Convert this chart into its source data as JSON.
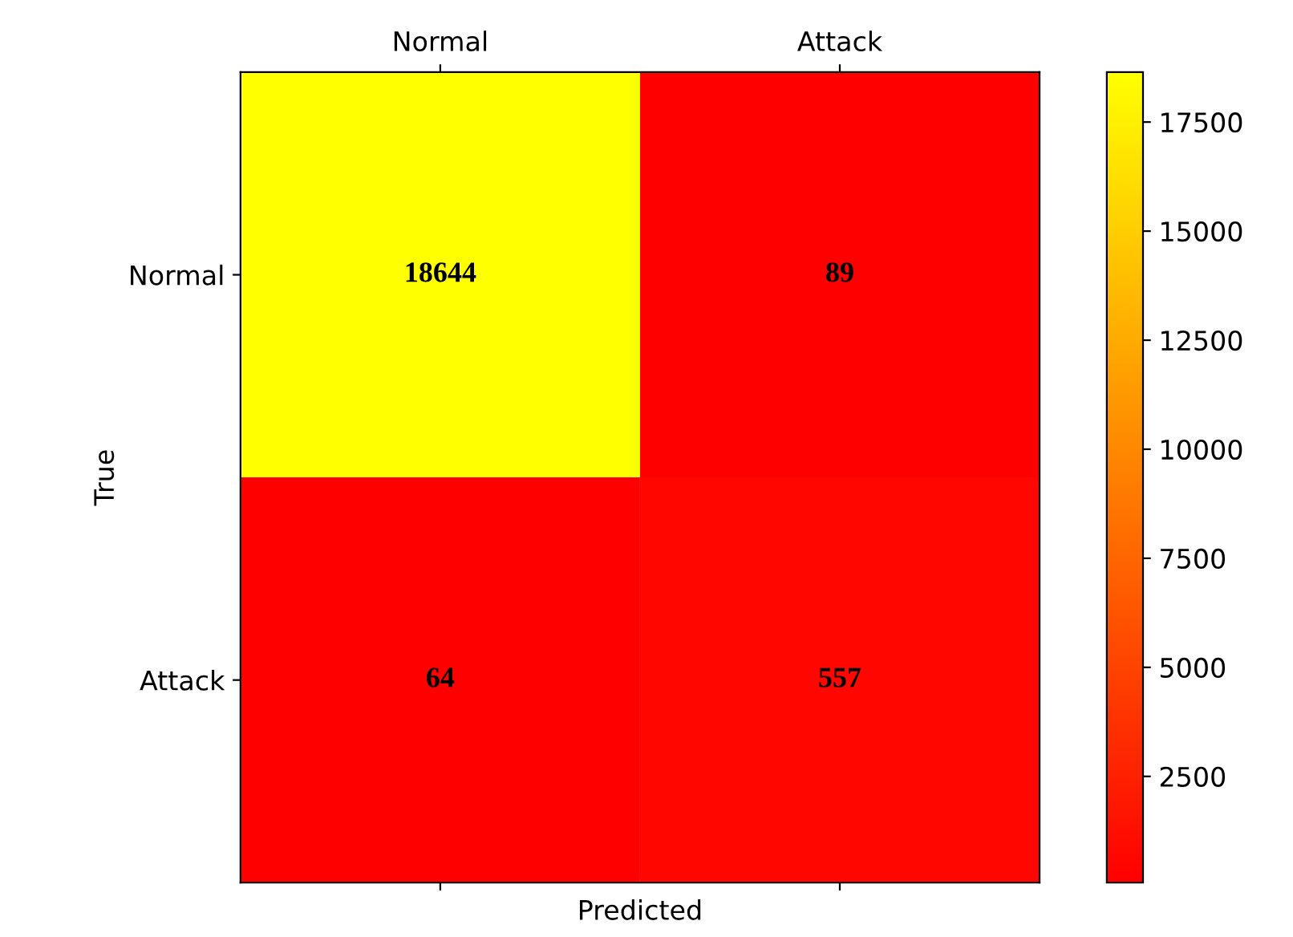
{
  "chart_data": {
    "type": "heatmap",
    "xlabel": "Predicted",
    "ylabel": "True",
    "categories": [
      "Normal",
      "Attack"
    ],
    "y_categories": [
      "Normal",
      "Attack"
    ],
    "cells": [
      [
        18644,
        89
      ],
      [
        64,
        557
      ]
    ],
    "clim": [
      64,
      18644
    ],
    "cticks": [
      2500,
      5000,
      7500,
      10000,
      12500,
      15000,
      17500
    ],
    "data_labels": true
  }
}
